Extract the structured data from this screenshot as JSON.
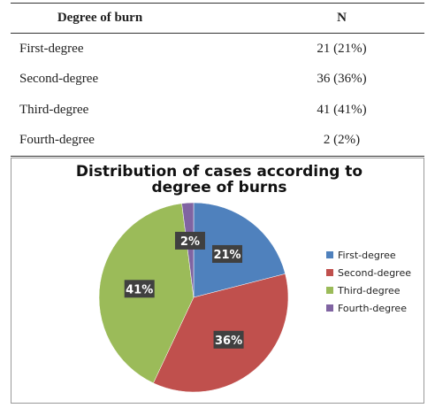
{
  "table": {
    "header": [
      "Degree of burn",
      "N"
    ],
    "rows": [
      [
        "First-degree",
        "21 (21%)"
      ],
      [
        "Second-degree",
        "36 (36%)"
      ],
      [
        "Third-degree",
        "41 (41%)"
      ],
      [
        "Fourth-degree",
        "2 (2%)"
      ]
    ]
  },
  "chart_data": {
    "type": "pie",
    "title": "Distribution of cases according to degree of burns",
    "categories": [
      "First-degree",
      "Second-degree",
      "Third-degree",
      "Fourth-degree"
    ],
    "values": [
      21,
      36,
      41,
      2
    ],
    "value_labels": [
      "21%",
      "36%",
      "41%",
      "2%"
    ],
    "colors": [
      "#4f81bd",
      "#c0504d",
      "#9bbb59",
      "#8064a2"
    ],
    "legend": "right"
  }
}
